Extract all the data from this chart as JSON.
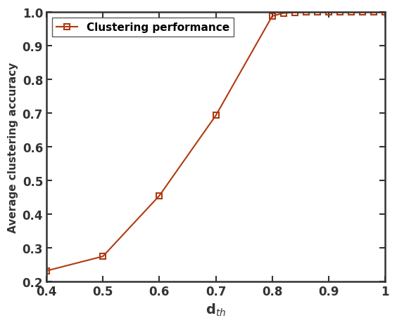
{
  "x": [
    0.4,
    0.5,
    0.6,
    0.7,
    0.8,
    0.82,
    0.84,
    0.86,
    0.88,
    0.9,
    0.92,
    0.94,
    0.96,
    0.98,
    1.0
  ],
  "y": [
    0.232,
    0.275,
    0.455,
    0.693,
    0.988,
    0.997,
    0.999,
    1.0,
    1.0,
    1.0,
    1.0,
    1.0,
    1.0,
    1.0,
    1.0
  ],
  "line_color": "#B03A10",
  "marker": "s",
  "marker_facecolor": "none",
  "marker_edgecolor": "#B03A10",
  "marker_size": 6,
  "linewidth": 1.5,
  "xlabel": "d$_{th}$",
  "ylabel": "Average clustering accuracy",
  "xlim": [
    0.4,
    1.0
  ],
  "ylim": [
    0.2,
    1.0
  ],
  "xticks": [
    0.4,
    0.5,
    0.6,
    0.7,
    0.8,
    0.9,
    1.0
  ],
  "yticks": [
    0.2,
    0.3,
    0.4,
    0.5,
    0.6,
    0.7,
    0.8,
    0.9,
    1.0
  ],
  "legend_label": "Clustering performance",
  "xlabel_fontsize": 14,
  "ylabel_fontsize": 11,
  "tick_fontsize": 12,
  "legend_fontsize": 11,
  "spine_linewidth": 1.8,
  "background_color": "#ffffff"
}
